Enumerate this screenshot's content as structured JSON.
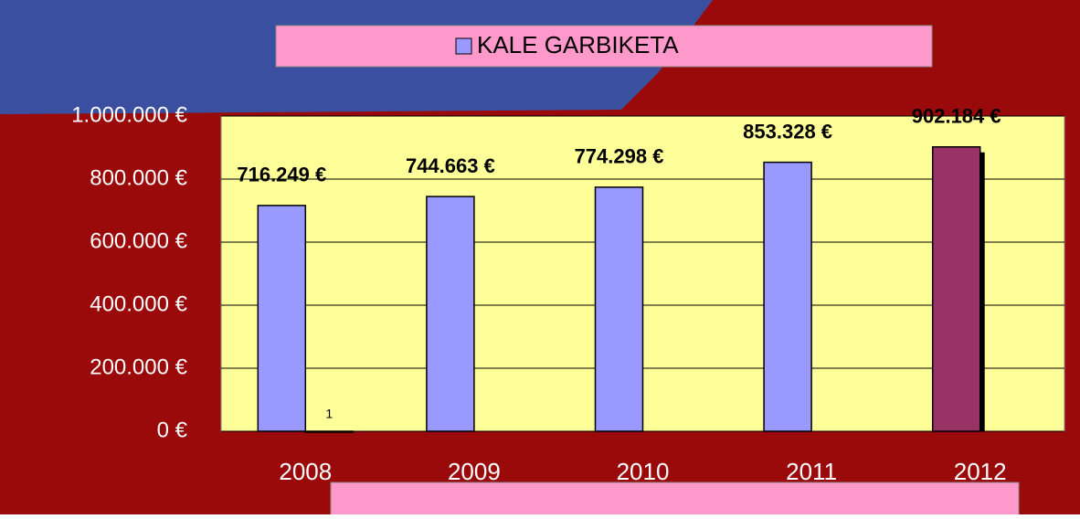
{
  "chart_data": {
    "type": "bar",
    "categories": [
      "2008",
      "2009",
      "2010",
      "2011",
      "2012"
    ],
    "series": [
      {
        "name": "KALE GARBIKETA",
        "color": "#9999ff",
        "colors": [
          "#9999ff",
          "#9999ff",
          "#9999ff",
          "#9999ff",
          "#993366"
        ],
        "values": [
          716249,
          744663,
          774298,
          853328,
          902184
        ],
        "value_labels": [
          "716.249 €",
          "744.663 €",
          "774.298 €",
          "853.328 €",
          "902.184 €"
        ]
      },
      {
        "color": "#333333",
        "values": [
          1,
          null,
          null,
          null,
          null
        ]
      }
    ],
    "ylim": [
      0,
      1000000
    ],
    "yticks": [
      {
        "value": 0,
        "label": "0 €"
      },
      {
        "value": 200000,
        "label": "200.000 €"
      },
      {
        "value": 400000,
        "label": "400.000 €"
      },
      {
        "value": 600000,
        "label": "600.000 €"
      },
      {
        "value": 800000,
        "label": "800.000 €"
      },
      {
        "value": 1000000,
        "label": "1.000.000 €"
      }
    ],
    "grid": true,
    "legend": "top"
  }
}
